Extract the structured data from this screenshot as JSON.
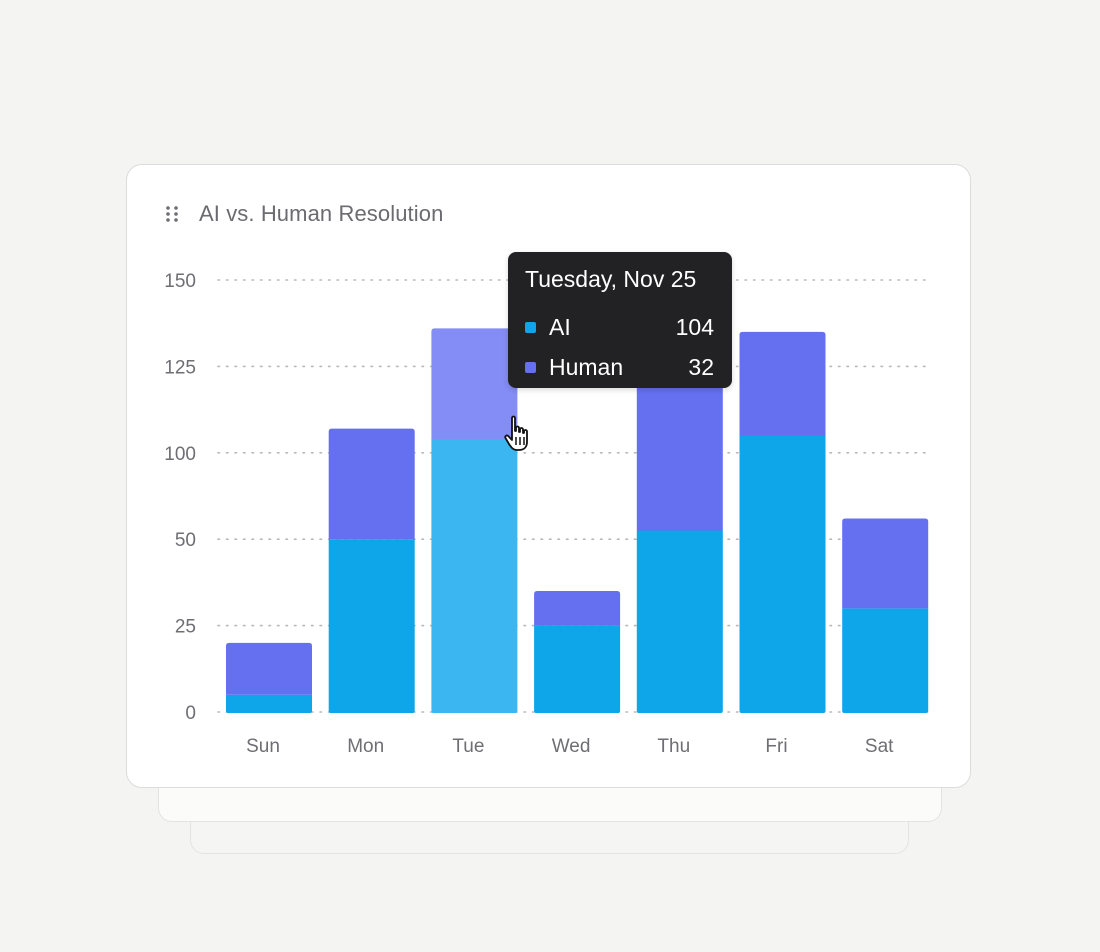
{
  "card": {
    "title": "AI vs. Human Resolution"
  },
  "tooltip": {
    "title": "Tuesday, Nov 25",
    "rows": [
      {
        "label": "AI",
        "value": "104",
        "color": "#0ea5e9"
      },
      {
        "label": "Human",
        "value": "32",
        "color": "#6470f0"
      }
    ]
  },
  "chart_data": {
    "type": "bar",
    "stacked": true,
    "title": "AI vs. Human Resolution",
    "xlabel": "",
    "ylabel": "",
    "categories": [
      "Sun",
      "Mon",
      "Tue",
      "Wed",
      "Thu",
      "Fri",
      "Sat"
    ],
    "y_ticks": [
      "0",
      "25",
      "50",
      "100",
      "125",
      "150"
    ],
    "series": [
      {
        "name": "AI",
        "color": "#0ea5e9",
        "values": [
          5,
          50,
          104,
          25,
          55,
          105,
          30
        ]
      },
      {
        "name": "Human",
        "color": "#6470f0",
        "values": [
          15,
          57,
          32,
          10,
          77,
          30,
          32
        ]
      }
    ],
    "highlighted_category": "Tue",
    "grid": true,
    "legend": "tooltip"
  }
}
